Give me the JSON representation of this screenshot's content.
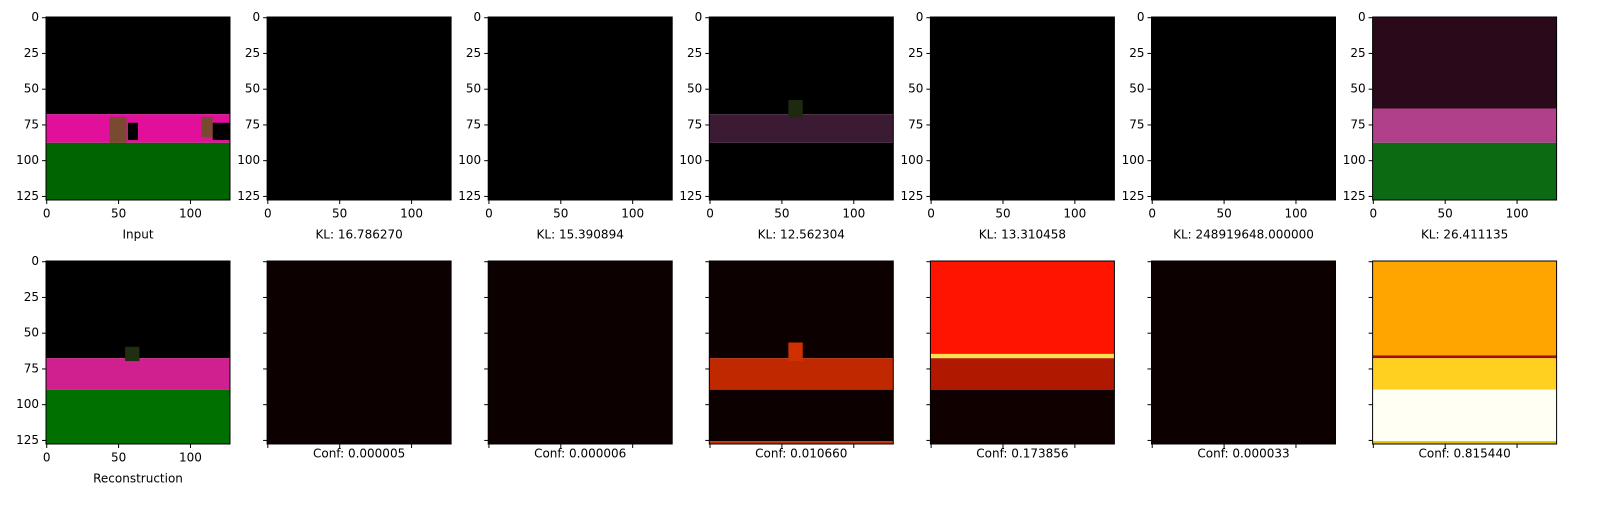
{
  "chart_data": [
    {
      "type": "image",
      "xlim": [
        -0.5,
        127.5
      ],
      "ylim": [
        127.5,
        -0.5
      ],
      "xticks": [
        0,
        50,
        100
      ],
      "yticks": [
        0,
        25,
        50,
        75,
        100,
        125
      ],
      "tick_labels": true,
      "label": "Input"
    },
    {
      "type": "image",
      "xlim": [
        -0.5,
        127.5
      ],
      "ylim": [
        127.5,
        -0.5
      ],
      "xticks": [
        0,
        50,
        100
      ],
      "yticks": [
        0,
        25,
        50,
        75,
        100,
        125
      ],
      "tick_labels": true,
      "label": "KL: 16.786270"
    },
    {
      "type": "image",
      "xlim": [
        -0.5,
        127.5
      ],
      "ylim": [
        127.5,
        -0.5
      ],
      "xticks": [
        0,
        50,
        100
      ],
      "yticks": [
        0,
        25,
        50,
        75,
        100,
        125
      ],
      "tick_labels": true,
      "label": "KL: 15.390894"
    },
    {
      "type": "image",
      "xlim": [
        -0.5,
        127.5
      ],
      "ylim": [
        127.5,
        -0.5
      ],
      "xticks": [
        0,
        50,
        100
      ],
      "yticks": [
        0,
        25,
        50,
        75,
        100,
        125
      ],
      "tick_labels": true,
      "label": "KL: 12.562304"
    },
    {
      "type": "image",
      "xlim": [
        -0.5,
        127.5
      ],
      "ylim": [
        127.5,
        -0.5
      ],
      "xticks": [
        0,
        50,
        100
      ],
      "yticks": [
        0,
        25,
        50,
        75,
        100,
        125
      ],
      "tick_labels": true,
      "label": "KL: 13.310458"
    },
    {
      "type": "image",
      "xlim": [
        -0.5,
        127.5
      ],
      "ylim": [
        127.5,
        -0.5
      ],
      "xticks": [
        0,
        50,
        100
      ],
      "yticks": [
        0,
        25,
        50,
        75,
        100,
        125
      ],
      "tick_labels": true,
      "label": "KL: 248919648.000000"
    },
    {
      "type": "image",
      "xlim": [
        -0.5,
        127.5
      ],
      "ylim": [
        127.5,
        -0.5
      ],
      "xticks": [
        0,
        50,
        100
      ],
      "yticks": [
        0,
        25,
        50,
        75,
        100,
        125
      ],
      "tick_labels": true,
      "label": "KL: 26.411135"
    },
    {
      "type": "image",
      "xlim": [
        -0.5,
        127.5
      ],
      "ylim": [
        127.5,
        -0.5
      ],
      "xticks": [
        0,
        50,
        100
      ],
      "yticks": [
        0,
        25,
        50,
        75,
        100,
        125
      ],
      "tick_labels": true,
      "label": "Reconstruction"
    },
    {
      "type": "image",
      "xlim": [
        -0.5,
        127.5
      ],
      "ylim": [
        127.5,
        -0.5
      ],
      "xticks": [
        0,
        50,
        100
      ],
      "yticks": [
        0,
        25,
        50,
        75,
        100,
        125
      ],
      "tick_labels": false,
      "label": "Conf: 0.000005"
    },
    {
      "type": "image",
      "xlim": [
        -0.5,
        127.5
      ],
      "ylim": [
        127.5,
        -0.5
      ],
      "xticks": [
        0,
        50,
        100
      ],
      "yticks": [
        0,
        25,
        50,
        75,
        100,
        125
      ],
      "tick_labels": false,
      "label": "Conf: 0.000006"
    },
    {
      "type": "image",
      "xlim": [
        -0.5,
        127.5
      ],
      "ylim": [
        127.5,
        -0.5
      ],
      "xticks": [
        0,
        50,
        100
      ],
      "yticks": [
        0,
        25,
        50,
        75,
        100,
        125
      ],
      "tick_labels": false,
      "label": "Conf: 0.010660"
    },
    {
      "type": "image",
      "xlim": [
        -0.5,
        127.5
      ],
      "ylim": [
        127.5,
        -0.5
      ],
      "xticks": [
        0,
        50,
        100
      ],
      "yticks": [
        0,
        25,
        50,
        75,
        100,
        125
      ],
      "tick_labels": false,
      "label": "Conf: 0.173856"
    },
    {
      "type": "image",
      "xlim": [
        -0.5,
        127.5
      ],
      "ylim": [
        127.5,
        -0.5
      ],
      "xticks": [
        0,
        50,
        100
      ],
      "yticks": [
        0,
        25,
        50,
        75,
        100,
        125
      ],
      "tick_labels": false,
      "label": "Conf: 0.000033"
    },
    {
      "type": "image",
      "xlim": [
        -0.5,
        127.5
      ],
      "ylim": [
        127.5,
        -0.5
      ],
      "xticks": [
        0,
        50,
        100
      ],
      "yticks": [
        0,
        25,
        50,
        75,
        100,
        125
      ],
      "tick_labels": false,
      "label": "Conf: 0.815440"
    }
  ]
}
